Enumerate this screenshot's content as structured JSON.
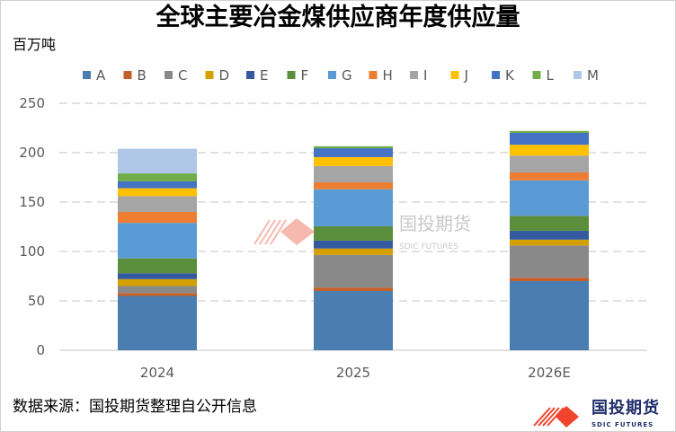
{
  "chart_data": {
    "type": "bar",
    "stacked": true,
    "title": "全球主要冶金煤供应商年度供应量",
    "ylabel": "百万吨",
    "xlabel": "",
    "categories": [
      "2024",
      "2025",
      "2026E"
    ],
    "ylim": [
      0,
      250
    ],
    "yticks": [
      0,
      50,
      100,
      150,
      200,
      250
    ],
    "grid": true,
    "legend": "top",
    "series": [
      {
        "name": "A",
        "color": "#4A7EB0",
        "values": [
          55,
          60,
          70
        ]
      },
      {
        "name": "B",
        "color": "#C5602A",
        "values": [
          3,
          3.5,
          3.5
        ]
      },
      {
        "name": "C",
        "color": "#898989",
        "values": [
          7,
          33,
          32.5
        ]
      },
      {
        "name": "D",
        "color": "#D4A000",
        "values": [
          7,
          6.5,
          6
        ]
      },
      {
        "name": "E",
        "color": "#335A9E",
        "values": [
          6,
          8,
          9
        ]
      },
      {
        "name": "F",
        "color": "#5A8E3A",
        "values": [
          15,
          14.5,
          15
        ]
      },
      {
        "name": "G",
        "color": "#5B9BD5",
        "values": [
          36,
          37.5,
          36
        ]
      },
      {
        "name": "H",
        "color": "#ED7D31",
        "values": [
          11,
          7,
          8
        ]
      },
      {
        "name": "I",
        "color": "#A5A5A5",
        "values": [
          16,
          16.5,
          17
        ]
      },
      {
        "name": "J",
        "color": "#FFC000",
        "values": [
          8,
          9,
          11
        ]
      },
      {
        "name": "K",
        "color": "#4472C4",
        "values": [
          7,
          9,
          12
        ]
      },
      {
        "name": "L",
        "color": "#70AD47",
        "values": [
          8,
          2,
          2
        ]
      },
      {
        "name": "M",
        "color": "#AEC7E6",
        "values": [
          25,
          0,
          0
        ]
      }
    ]
  },
  "source": "数据来源：国投期货整理自公开信息",
  "logo": {
    "cn": "国投期货",
    "en": "SDIC FUTURES"
  }
}
